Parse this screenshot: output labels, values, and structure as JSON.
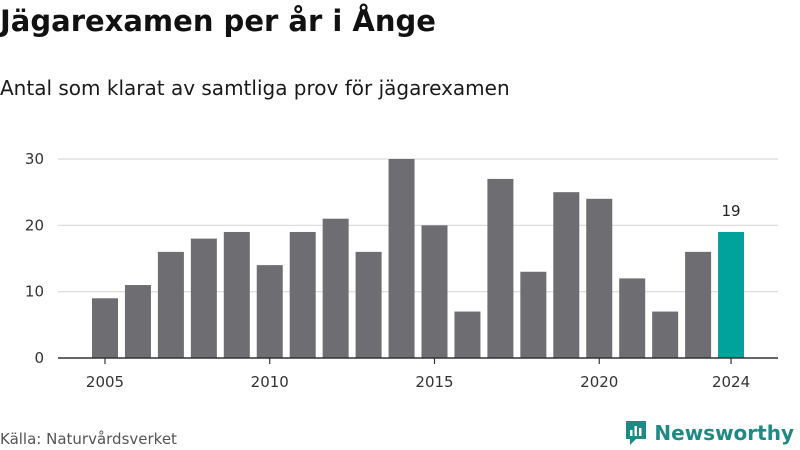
{
  "title": "Jägarexamen per år i Ånge",
  "subtitle": "Antal som klarat av samtliga prov för jägarexamen",
  "source": "Källa: Naturvårdsverket",
  "brand": "Newsworthy",
  "colors": {
    "bar": "#6e6d72",
    "highlight": "#00a39b",
    "grid": "#d9d9d9",
    "axis": "#333333",
    "brand": "#1f8a85"
  },
  "chart_data": {
    "type": "bar",
    "title": "Jägarexamen per år i Ånge",
    "subtitle": "Antal som klarat av samtliga prov för jägarexamen",
    "xlabel": "",
    "ylabel": "",
    "categories": [
      2005,
      2006,
      2007,
      2008,
      2009,
      2010,
      2011,
      2012,
      2013,
      2014,
      2015,
      2016,
      2017,
      2018,
      2019,
      2020,
      2021,
      2022,
      2023,
      2024
    ],
    "values": [
      9,
      11,
      16,
      18,
      19,
      14,
      19,
      21,
      16,
      30,
      20,
      7,
      27,
      13,
      25,
      24,
      12,
      7,
      16,
      19
    ],
    "highlight_category": 2024,
    "highlight_label": "19",
    "ylim": [
      0,
      30
    ],
    "yticks": [
      0,
      10,
      20,
      30
    ],
    "xticks": [
      2005,
      2010,
      2015,
      2020,
      2024
    ],
    "grid": "horizontal",
    "legend": "none"
  }
}
